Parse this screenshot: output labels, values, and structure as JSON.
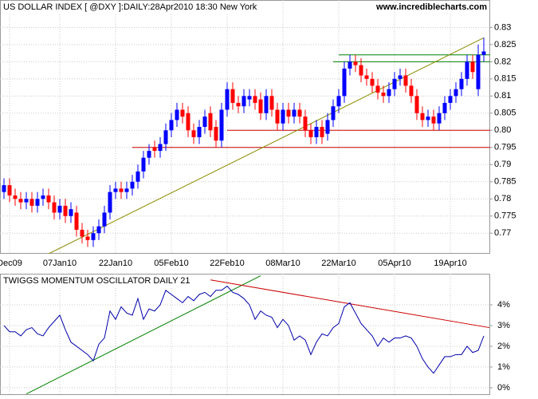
{
  "chart_data": [
    {
      "type": "candlestick",
      "title": "US DOLLAR INDEX [ @DXY ]:DAILY:28Apr2010 18:30 New York",
      "watermark": "www.incrediblecharts.com",
      "categories": [
        null,
        "Dec09",
        null,
        null,
        null,
        null,
        null,
        null,
        null,
        null,
        "07Jan10",
        null,
        null,
        null,
        null,
        null,
        null,
        null,
        null,
        null,
        "22Jan10",
        null,
        null,
        null,
        null,
        null,
        null,
        null,
        null,
        null,
        "05Feb10",
        null,
        null,
        null,
        null,
        null,
        null,
        null,
        null,
        null,
        "22Feb10",
        null,
        null,
        null,
        null,
        null,
        null,
        null,
        null,
        null,
        "08Mar10",
        null,
        null,
        null,
        null,
        null,
        null,
        null,
        null,
        null,
        "22Mar10",
        null,
        null,
        null,
        null,
        null,
        null,
        null,
        null,
        null,
        "05Apr10",
        null,
        null,
        null,
        null,
        null,
        null,
        null,
        null,
        null,
        "19Apr10",
        null,
        null,
        null,
        null,
        null,
        null
      ],
      "open": [
        0.782,
        0.784,
        0.781,
        0.78,
        0.779,
        0.78,
        0.778,
        0.78,
        0.781,
        0.779,
        0.776,
        0.778,
        0.775,
        0.776,
        0.771,
        0.769,
        0.768,
        0.77,
        0.772,
        0.776,
        0.782,
        0.783,
        0.782,
        0.783,
        0.785,
        0.788,
        0.792,
        0.795,
        0.794,
        0.796,
        0.8,
        0.803,
        0.806,
        0.805,
        0.8,
        0.798,
        0.801,
        0.805,
        0.801,
        0.797,
        0.806,
        0.812,
        0.808,
        0.807,
        0.809,
        0.81,
        0.809,
        0.805,
        0.81,
        0.806,
        0.802,
        0.806,
        0.804,
        0.806,
        0.804,
        0.8,
        0.798,
        0.801,
        0.799,
        0.803,
        0.807,
        0.81,
        0.818,
        0.82,
        0.819,
        0.816,
        0.815,
        0.813,
        0.811,
        0.81,
        0.812,
        0.815,
        0.816,
        0.813,
        0.81,
        0.805,
        0.803,
        0.804,
        0.802,
        0.805,
        0.808,
        0.81,
        0.812,
        0.815,
        0.82,
        0.812,
        0.822
      ],
      "high": [
        0.786,
        0.786,
        0.783,
        0.782,
        0.782,
        0.782,
        0.782,
        0.783,
        0.783,
        0.781,
        0.78,
        0.78,
        0.779,
        0.778,
        0.773,
        0.771,
        0.772,
        0.774,
        0.778,
        0.784,
        0.785,
        0.785,
        0.785,
        0.787,
        0.79,
        0.794,
        0.796,
        0.797,
        0.798,
        0.802,
        0.805,
        0.808,
        0.808,
        0.807,
        0.802,
        0.803,
        0.806,
        0.807,
        0.803,
        0.808,
        0.814,
        0.814,
        0.81,
        0.812,
        0.812,
        0.812,
        0.811,
        0.812,
        0.812,
        0.808,
        0.808,
        0.808,
        0.808,
        0.808,
        0.806,
        0.802,
        0.803,
        0.803,
        0.805,
        0.809,
        0.812,
        0.82,
        0.822,
        0.822,
        0.821,
        0.818,
        0.817,
        0.815,
        0.813,
        0.814,
        0.817,
        0.818,
        0.818,
        0.815,
        0.812,
        0.807,
        0.806,
        0.806,
        0.807,
        0.81,
        0.812,
        0.814,
        0.817,
        0.822,
        0.822,
        0.825,
        0.827
      ],
      "low": [
        0.78,
        0.779,
        0.778,
        0.777,
        0.777,
        0.776,
        0.776,
        0.778,
        0.777,
        0.774,
        0.774,
        0.773,
        0.773,
        0.769,
        0.767,
        0.766,
        0.766,
        0.768,
        0.77,
        0.774,
        0.78,
        0.78,
        0.78,
        0.781,
        0.783,
        0.786,
        0.79,
        0.792,
        0.792,
        0.794,
        0.798,
        0.801,
        0.802,
        0.798,
        0.796,
        0.796,
        0.799,
        0.798,
        0.795,
        0.795,
        0.804,
        0.806,
        0.805,
        0.805,
        0.807,
        0.806,
        0.803,
        0.803,
        0.804,
        0.8,
        0.8,
        0.802,
        0.802,
        0.802,
        0.798,
        0.796,
        0.796,
        0.796,
        0.797,
        0.801,
        0.805,
        0.808,
        0.816,
        0.817,
        0.814,
        0.813,
        0.811,
        0.809,
        0.808,
        0.808,
        0.81,
        0.813,
        0.811,
        0.808,
        0.803,
        0.801,
        0.801,
        0.8,
        0.8,
        0.803,
        0.806,
        0.808,
        0.81,
        0.813,
        0.815,
        0.81,
        0.82
      ],
      "close": [
        0.784,
        0.781,
        0.78,
        0.779,
        0.78,
        0.778,
        0.78,
        0.781,
        0.779,
        0.776,
        0.778,
        0.775,
        0.777,
        0.771,
        0.769,
        0.768,
        0.77,
        0.772,
        0.776,
        0.782,
        0.783,
        0.782,
        0.783,
        0.785,
        0.788,
        0.792,
        0.794,
        0.794,
        0.796,
        0.8,
        0.803,
        0.806,
        0.804,
        0.8,
        0.798,
        0.801,
        0.804,
        0.8,
        0.797,
        0.806,
        0.812,
        0.808,
        0.807,
        0.81,
        0.81,
        0.808,
        0.805,
        0.81,
        0.806,
        0.802,
        0.806,
        0.804,
        0.806,
        0.804,
        0.8,
        0.798,
        0.801,
        0.798,
        0.803,
        0.807,
        0.81,
        0.818,
        0.82,
        0.819,
        0.816,
        0.815,
        0.813,
        0.811,
        0.81,
        0.812,
        0.815,
        0.816,
        0.813,
        0.81,
        0.805,
        0.803,
        0.804,
        0.802,
        0.805,
        0.808,
        0.81,
        0.812,
        0.815,
        0.82,
        0.817,
        0.822,
        0.823
      ],
      "up_color": "#0000ff",
      "down_color": "#ff0000",
      "ylim": [
        0.764,
        0.838
      ],
      "yticks": [
        0.77,
        0.775,
        0.78,
        0.785,
        0.79,
        0.795,
        {
          "value": 0.8,
          "label": "0.80"
        },
        0.805,
        0.81,
        0.815,
        0.82,
        0.825,
        0.83
      ],
      "grid": true,
      "trendlines": [
        {
          "from": [
            8,
            0.764
          ],
          "to": [
            86,
            0.827
          ],
          "color": "#8b8b00"
        }
      ],
      "levels": [
        {
          "value": 0.795,
          "start": 23,
          "color": "#cc0000"
        },
        {
          "value": 0.8,
          "start": 40,
          "color": "#cc0000"
        },
        {
          "value": 0.82,
          "start": 59,
          "color": "#008000"
        },
        {
          "value": 0.822,
          "start": 60,
          "color": "#008000"
        }
      ]
    },
    {
      "type": "line",
      "title": "TWIGGS MOMENTUM OSCILLATOR DAILY 21",
      "color": "#0000aa",
      "values": [
        3.0,
        2.7,
        2.7,
        2.5,
        2.8,
        2.9,
        2.6,
        2.5,
        2.9,
        3.2,
        3.5,
        2.8,
        2.2,
        2.0,
        1.8,
        1.6,
        1.3,
        2.1,
        2.4,
        3.7,
        3.3,
        3.9,
        3.6,
        3.5,
        4.3,
        3.3,
        3.8,
        3.7,
        4.0,
        4.7,
        4.5,
        4.3,
        4.1,
        4.4,
        4.2,
        4.5,
        4.6,
        4.4,
        4.7,
        4.7,
        4.9,
        4.6,
        4.5,
        4.3,
        4.0,
        3.3,
        3.7,
        3.5,
        3.4,
        2.9,
        3.3,
        3.0,
        2.3,
        2.5,
        2.3,
        1.6,
        2.2,
        2.6,
        2.5,
        2.9,
        3.1,
        3.9,
        4.1,
        3.6,
        3.1,
        2.8,
        2.5,
        2.0,
        2.4,
        2.2,
        2.4,
        2.4,
        2.5,
        2.4,
        2.0,
        1.4,
        1.0,
        0.7,
        1.1,
        1.5,
        1.5,
        1.6,
        1.6,
        2.0,
        1.7,
        1.8,
        2.5
      ],
      "ylim": [
        -0.35,
        5.5
      ],
      "yticks": [
        {
          "value": 0,
          "label": "0%"
        },
        {
          "value": 1,
          "label": "1%"
        },
        {
          "value": 2,
          "label": "2%"
        },
        {
          "value": 3,
          "label": "3%"
        },
        {
          "value": 4,
          "label": "4%"
        }
      ],
      "grid": true,
      "trendlines": [
        {
          "from": [
            4,
            -0.3
          ],
          "to": [
            46,
            5.4
          ],
          "color": "#008000"
        },
        {
          "from": [
            37,
            5.2
          ],
          "to": [
            87,
            2.9
          ],
          "color": "#cc0000"
        }
      ]
    }
  ]
}
